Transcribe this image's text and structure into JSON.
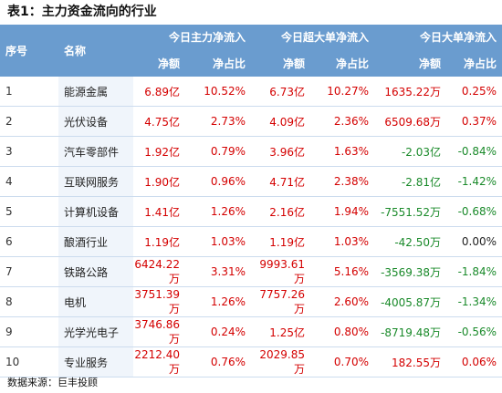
{
  "title": "表1：主力资金流向的行业",
  "header": {
    "seq": "序号",
    "name": "名称",
    "groups": [
      "今日主力净流入",
      "今日超大单净流入",
      "今日大单净流入"
    ],
    "sub": [
      "净额",
      "净占比",
      "净额",
      "净占比",
      "净额",
      "净占比"
    ]
  },
  "rows": [
    {
      "seq": "1",
      "name": "能源金属",
      "cells": [
        "6.89亿",
        "10.52%",
        "6.73亿",
        "10.27%",
        "1635.22万",
        "0.25%"
      ],
      "colors": [
        "red",
        "red",
        "red",
        "red",
        "red",
        "red"
      ]
    },
    {
      "seq": "2",
      "name": "光伏设备",
      "cells": [
        "4.75亿",
        "2.73%",
        "4.09亿",
        "2.36%",
        "6509.68万",
        "0.37%"
      ],
      "colors": [
        "red",
        "red",
        "red",
        "red",
        "red",
        "red"
      ]
    },
    {
      "seq": "3",
      "name": "汽车零部件",
      "cells": [
        "1.92亿",
        "0.79%",
        "3.96亿",
        "1.63%",
        "-2.03亿",
        "-0.84%"
      ],
      "colors": [
        "red",
        "red",
        "red",
        "red",
        "green",
        "green"
      ]
    },
    {
      "seq": "4",
      "name": "互联网服务",
      "cells": [
        "1.90亿",
        "0.96%",
        "4.71亿",
        "2.38%",
        "-2.81亿",
        "-1.42%"
      ],
      "colors": [
        "red",
        "red",
        "red",
        "red",
        "green",
        "green"
      ]
    },
    {
      "seq": "5",
      "name": "计算机设备",
      "cells": [
        "1.41亿",
        "1.26%",
        "2.16亿",
        "1.94%",
        "-7551.52万",
        "-0.68%"
      ],
      "colors": [
        "red",
        "red",
        "red",
        "red",
        "green",
        "green"
      ]
    },
    {
      "seq": "6",
      "name": "酿酒行业",
      "cells": [
        "1.19亿",
        "1.03%",
        "1.19亿",
        "1.03%",
        "-42.50万",
        "0.00%"
      ],
      "colors": [
        "red",
        "red",
        "red",
        "red",
        "green",
        "black"
      ]
    },
    {
      "seq": "7",
      "name": "铁路公路",
      "cells": [
        "6424.22万",
        "3.31%",
        "9993.61万",
        "5.16%",
        "-3569.38万",
        "-1.84%"
      ],
      "colors": [
        "red",
        "red",
        "red",
        "red",
        "green",
        "green"
      ]
    },
    {
      "seq": "8",
      "name": "电机",
      "cells": [
        "3751.39万",
        "1.26%",
        "7757.26万",
        "2.60%",
        "-4005.87万",
        "-1.34%"
      ],
      "colors": [
        "red",
        "red",
        "red",
        "red",
        "green",
        "green"
      ]
    },
    {
      "seq": "9",
      "name": "光学光电子",
      "cells": [
        "3746.86万",
        "0.24%",
        "1.25亿",
        "0.80%",
        "-8719.48万",
        "-0.56%"
      ],
      "colors": [
        "red",
        "red",
        "red",
        "red",
        "green",
        "green"
      ]
    },
    {
      "seq": "10",
      "name": "专业服务",
      "cells": [
        "2212.40万",
        "0.76%",
        "2029.85万",
        "0.70%",
        "182.55万",
        "0.06%"
      ],
      "colors": [
        "red",
        "red",
        "red",
        "red",
        "red",
        "red"
      ]
    }
  ],
  "footer": "数据来源：巨丰投顾",
  "colors": {
    "header_bg": "#6a9ccf",
    "positive": "#d40000",
    "negative": "#1a8a2a",
    "name_col_bg": "#f0f5fb"
  }
}
